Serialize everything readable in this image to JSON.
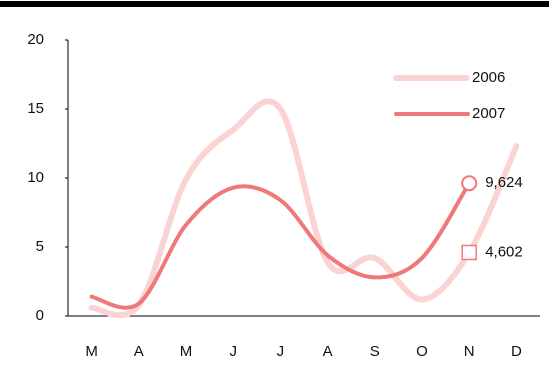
{
  "chart_data": {
    "type": "line",
    "categories": [
      "M",
      "A",
      "M",
      "J",
      "J",
      "A",
      "S",
      "O",
      "N",
      "D"
    ],
    "series": [
      {
        "name": "2006",
        "color": "#fbd3d3",
        "dashed": true,
        "marker": "square",
        "values": [
          0.6,
          0.8,
          9.9,
          13.5,
          15,
          3.9,
          4.2,
          1.2,
          4.602,
          12.3
        ],
        "value_labels": [
          null,
          null,
          null,
          null,
          null,
          null,
          null,
          null,
          "4,602",
          null
        ]
      },
      {
        "name": "2007",
        "color": "#f07878",
        "dashed": false,
        "marker": "circle",
        "values": [
          1.4,
          0.9,
          6.6,
          9.3,
          8.4,
          4.4,
          2.8,
          4.2,
          9.624,
          null
        ],
        "value_labels": [
          null,
          null,
          null,
          null,
          null,
          null,
          null,
          null,
          "9,624",
          null
        ]
      }
    ],
    "ylim": [
      0,
      20
    ],
    "yticks": [
      0,
      5,
      10,
      15,
      20
    ],
    "legend": "top-right"
  }
}
